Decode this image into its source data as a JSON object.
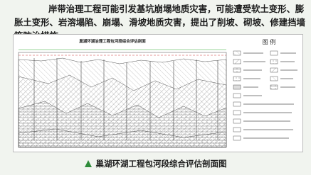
{
  "body": {
    "text": "岸带治理工程可能引发基坑崩塌地质灾害，可能遭受软土变形、膨胀土变形、岩溶塌陷、崩塌、滑坡地质灾害，提出了削坡、砌坡、修建挡墙等防治措施。"
  },
  "figure": {
    "title": "巢湖环湖治理工程包河段综合评估剖面",
    "legend_title": "图    例"
  },
  "caption": "巢湖环湖工程包河段综合评估剖面图"
}
